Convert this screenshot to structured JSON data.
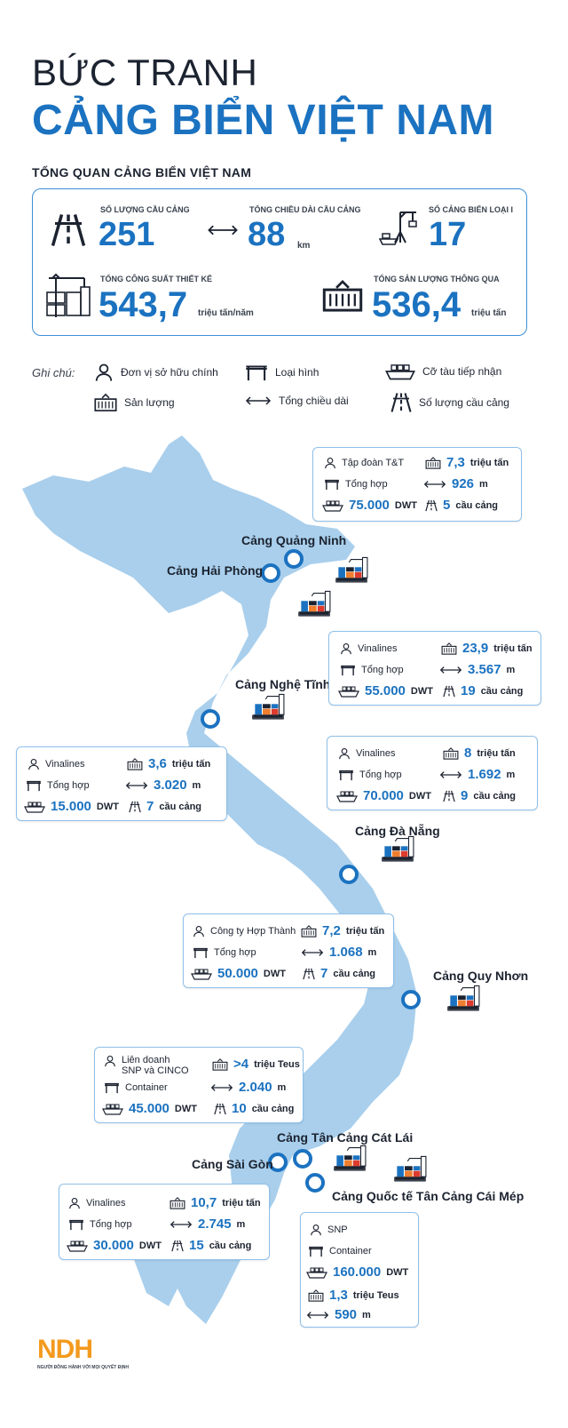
{
  "title_line1": "BỨC TRANH",
  "title_line2": "CẢNG BIỂN VIỆT NAM",
  "subtitle": "TỔNG QUAN CẢNG BIỂN VIỆT NAM",
  "summary": {
    "berths": {
      "label": "SỐ LƯỢNG CẦU CẢNG",
      "value": "251"
    },
    "length": {
      "label": "TỔNG CHIỀU DÀI CẦU CẢNG",
      "value": "88",
      "unit": "km"
    },
    "class1": {
      "label": "SỐ CẢNG BIỂN LOẠI I",
      "value": "17"
    },
    "capacity": {
      "label": "TỔNG CÔNG SUẤT THIẾT KẾ",
      "value": "543,7",
      "unit": "triệu tấn/năm"
    },
    "throughput": {
      "label": "TỔNG SẢN LƯỢNG THÔNG QUA",
      "value": "536,4",
      "unit": "triệu tấn"
    }
  },
  "legend": {
    "title": "Ghi chú:",
    "owner": "Đơn vị sở hữu chính",
    "type": "Loại hình",
    "ship": "Cỡ tàu tiếp nhận",
    "output": "Sản lượng",
    "length": "Tổng chiều dài",
    "berths": "Số lượng cầu cảng"
  },
  "ports": {
    "quangninh": {
      "name": "Cảng Quảng Ninh",
      "owner": "Tập đoàn T&T",
      "output": "7,3",
      "output_unit": "triệu tấn",
      "type": "Tổng hợp",
      "length": "926",
      "length_unit": "m",
      "ship": "75.000",
      "ship_unit": "DWT",
      "berths": "5",
      "berths_unit": "cầu cảng"
    },
    "haiphong": {
      "name": "Cảng Hải Phòng",
      "owner": "Vinalines",
      "output": "23,9",
      "output_unit": "triệu tấn",
      "type": "Tổng hợp",
      "length": "3.567",
      "length_unit": "m",
      "ship": "55.000",
      "ship_unit": "DWT",
      "berths": "19",
      "berths_unit": "cầu cảng"
    },
    "nghetinh": {
      "name": "Cảng Nghệ Tĩnh",
      "owner": "Vinalines",
      "output": "3,6",
      "output_unit": "triệu tấn",
      "type": "Tổng hợp",
      "length": "3.020",
      "length_unit": "m",
      "ship": "15.000",
      "ship_unit": "DWT",
      "berths": "7",
      "berths_unit": "cầu cảng"
    },
    "danang": {
      "name": "Cảng Đà Nẵng",
      "owner": "Vinalines",
      "output": "8",
      "output_unit": "triệu tấn",
      "type": "Tổng hợp",
      "length": "1.692",
      "length_unit": "m",
      "ship": "70.000",
      "ship_unit": "DWT",
      "berths": "9",
      "berths_unit": "cầu cảng"
    },
    "quynhon": {
      "name": "Cảng Quy Nhơn",
      "owner": "Công ty Hợp Thành",
      "output": "7,2",
      "output_unit": "triệu tấn",
      "type": "Tổng hợp",
      "length": "1.068",
      "length_unit": "m",
      "ship": "50.000",
      "ship_unit": "DWT",
      "berths": "7",
      "berths_unit": "cầu cảng"
    },
    "catlai": {
      "name": "Cảng Tân Cảng Cát Lái",
      "owner_line1": "Liên doanh",
      "owner_line2": "SNP và CINCO",
      "output": ">4",
      "output_unit": "triệu Teus",
      "type": "Container",
      "length": "2.040",
      "length_unit": "m",
      "ship": "45.000",
      "ship_unit": "DWT",
      "berths": "10",
      "berths_unit": "cầu cảng"
    },
    "saigon": {
      "name": "Cảng Sài Gòn",
      "owner": "Vinalines",
      "output": "10,7",
      "output_unit": "triệu tấn",
      "type": "Tổng hợp",
      "length": "2.745",
      "length_unit": "m",
      "ship": "30.000",
      "ship_unit": "DWT",
      "berths": "15",
      "berths_unit": "cầu cảng"
    },
    "caimep": {
      "name": "Cảng Quốc tế Tân Cảng Cái Mép",
      "owner": "SNP",
      "type": "Container",
      "ship": "160.000",
      "ship_unit": "DWT",
      "output": "1,3",
      "output_unit": "triệu Teus",
      "length": "590",
      "length_unit": "m"
    }
  },
  "logo": {
    "text": "NDH",
    "tagline": "NGƯỜI ĐỒNG HÀNH VỚI MỌI QUYẾT ĐỊNH"
  },
  "colors": {
    "accent": "#1b72c0",
    "map": "#a9cfec",
    "box_border": "#8fc0ea",
    "logo": "#f39a1e"
  }
}
